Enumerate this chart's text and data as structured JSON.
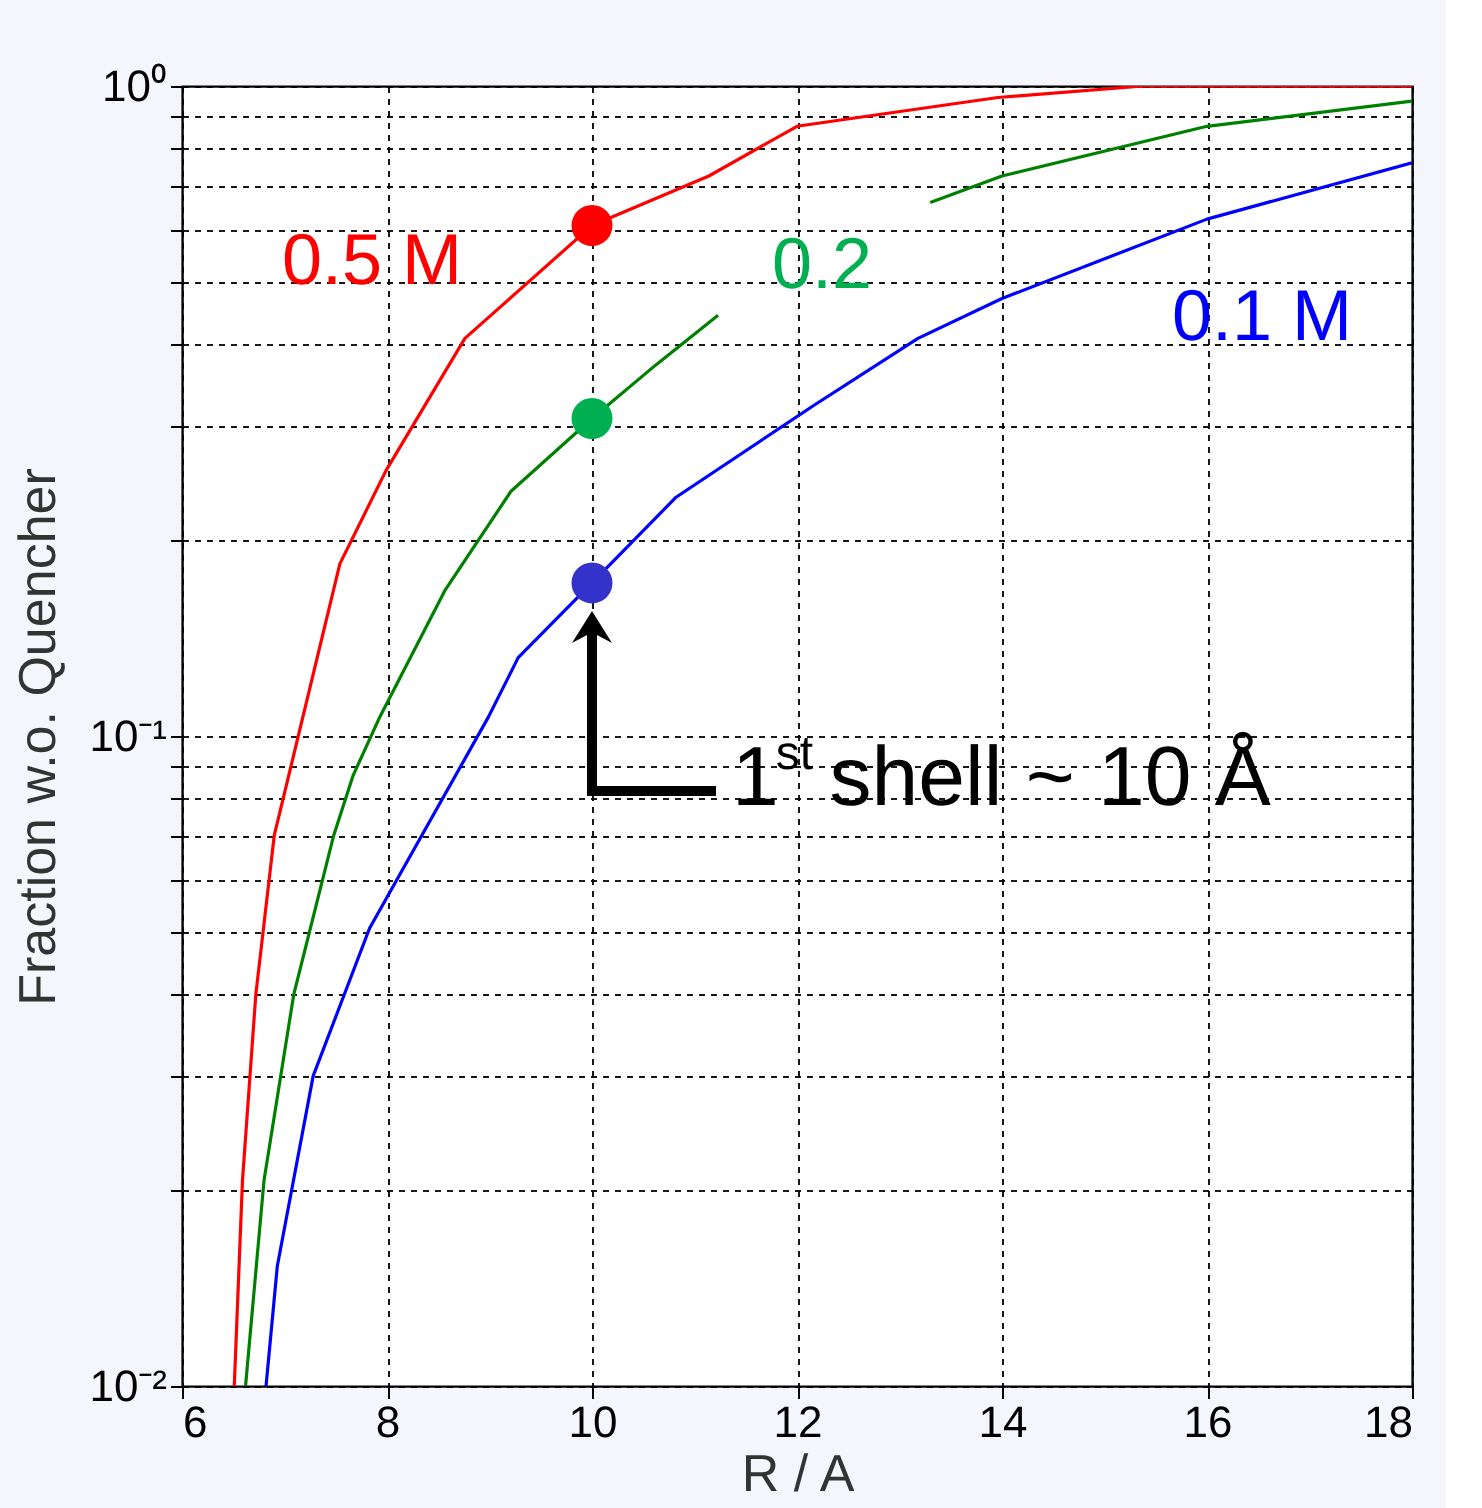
{
  "chart_data": {
    "type": "line",
    "xlabel": "R / A",
    "ylabel": "Fraction w.o. Quencher",
    "xlim": [
      6,
      18
    ],
    "xticks": [
      6,
      8,
      10,
      12,
      14,
      16,
      18
    ],
    "ylim": [
      0.01,
      1
    ],
    "log": "y",
    "yticks": [
      {
        "value": 0.01,
        "label": "10⁻²"
      },
      {
        "value": 0.02,
        "label": null
      },
      {
        "value": 0.03,
        "label": null
      },
      {
        "value": 0.04,
        "label": null
      },
      {
        "value": 0.05,
        "label": null
      },
      {
        "value": 0.06,
        "label": null
      },
      {
        "value": 0.07,
        "label": null
      },
      {
        "value": 0.08,
        "label": null
      },
      {
        "value": 0.09,
        "label": null
      },
      {
        "value": 0.1,
        "label": "10⁻¹"
      },
      {
        "value": 0.2,
        "label": null
      },
      {
        "value": 0.3,
        "label": null
      },
      {
        "value": 0.4,
        "label": null
      },
      {
        "value": 0.5,
        "label": null
      },
      {
        "value": 0.6,
        "label": null
      },
      {
        "value": 0.7,
        "label": null
      },
      {
        "value": 0.8,
        "label": null
      },
      {
        "value": 0.9,
        "label": null
      },
      {
        "value": 1,
        "label": "10⁰"
      }
    ],
    "grid": true,
    "line_style": "solid",
    "series": [
      {
        "name": "0.5 M",
        "color": "#ff0000",
        "x": [
          6.51,
          6.59,
          6.72,
          6.9,
          7.54,
          7.99,
          8.76,
          10,
          11.14,
          12,
          13.96,
          15.38,
          16,
          18
        ],
        "values": [
          0.01,
          0.0207,
          0.04,
          0.0703,
          0.184,
          0.256,
          0.409,
          0.61,
          0.727,
          0.867,
          0.96,
          1,
          1,
          1
        ]
      },
      {
        "name": "0.2",
        "color": "#008000",
        "x": [
          6.62,
          6.8,
          7.09,
          7.48,
          7.67,
          7.93,
          8.57,
          9.21,
          10,
          10.62,
          11.23,
          12,
          13.3,
          14,
          16,
          18
        ],
        "values": [
          0.01,
          0.0207,
          0.04,
          0.0703,
          0.087,
          0.107,
          0.168,
          0.238,
          0.308,
          0.372,
          0.444,
          null,
          0.662,
          0.727,
          0.867,
          0.948
        ]
      },
      {
        "name": "0.1 M",
        "color": "#0000ff",
        "x": [
          6.82,
          6.93,
          7.28,
          7.83,
          8.99,
          9.28,
          10,
          10.82,
          12.17,
          13.18,
          14,
          16,
          18
        ],
        "values": [
          0.01,
          0.0153,
          0.03,
          0.0506,
          0.107,
          0.132,
          0.172,
          0.233,
          0.323,
          0.409,
          0.471,
          0.624,
          0.762
        ]
      },
      {
        "type": "scatter",
        "marker": "circle",
        "color": "#ff0000",
        "x": [
          10
        ],
        "values": [
          0.61
        ]
      },
      {
        "type": "scatter",
        "marker": "circle",
        "color": "#00b050",
        "x": [
          10
        ],
        "values": [
          0.308
        ]
      },
      {
        "type": "scatter",
        "marker": "circle",
        "color": "#3333cc",
        "x": [
          10
        ],
        "values": [
          0.172
        ]
      }
    ],
    "annotations": [
      {
        "text": "1$^{st}$ shell ~ 10 Å",
        "x": 10,
        "y": 0.172
      }
    ]
  }
}
